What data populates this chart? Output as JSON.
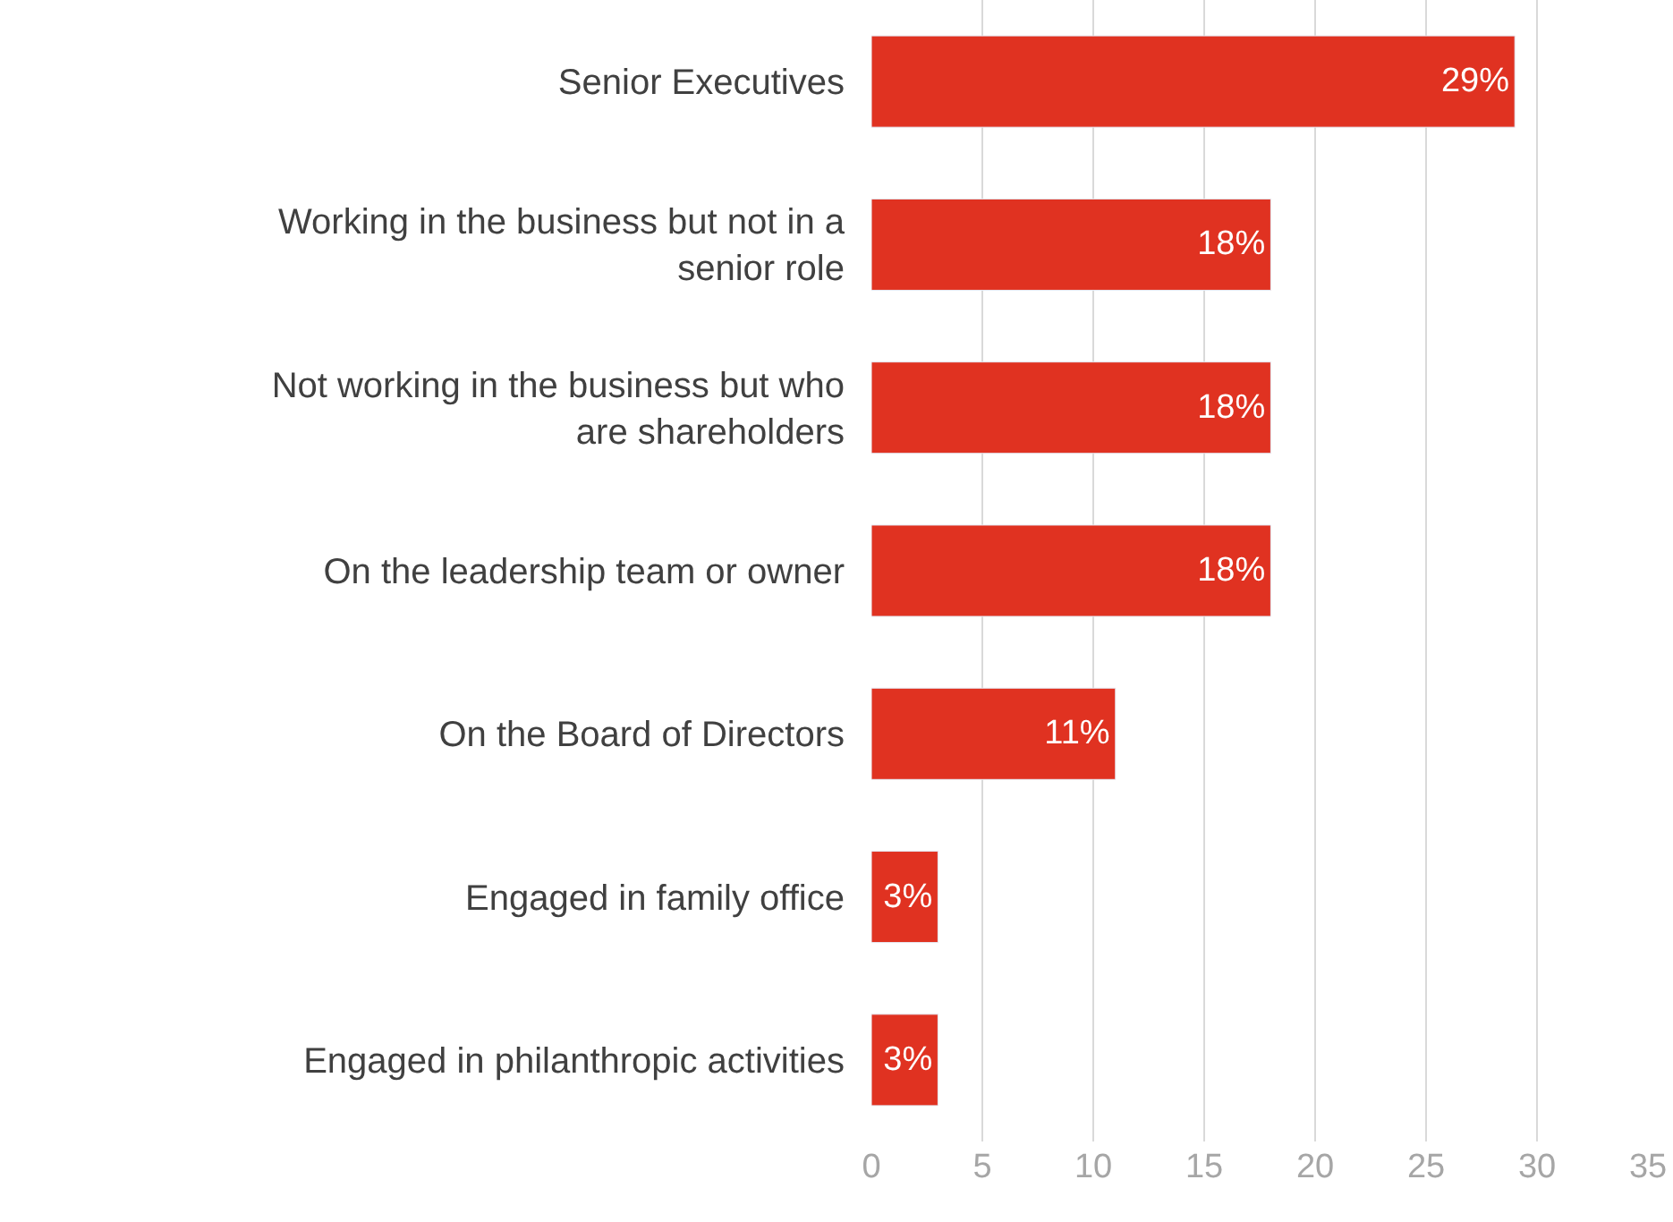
{
  "chart_data": {
    "type": "bar",
    "orientation": "horizontal",
    "categories": [
      "Senior Executives",
      "Working in the business but not in a senior role",
      "Not working in the business but who are shareholders",
      "On the leadership team or owner",
      "On the Board of Directors",
      "Engaged in family office",
      "Engaged in philanthropic activities"
    ],
    "values": [
      29,
      18,
      18,
      18,
      11,
      3,
      3
    ],
    "value_labels": [
      "29%",
      "18%",
      "18%",
      "18%",
      "11%",
      "3%",
      "3%"
    ],
    "color": "#e03221",
    "xlim": [
      0,
      35
    ],
    "xticks": [
      0,
      5,
      10,
      15,
      20,
      25,
      30,
      35
    ],
    "grid": "x",
    "legend": false
  }
}
